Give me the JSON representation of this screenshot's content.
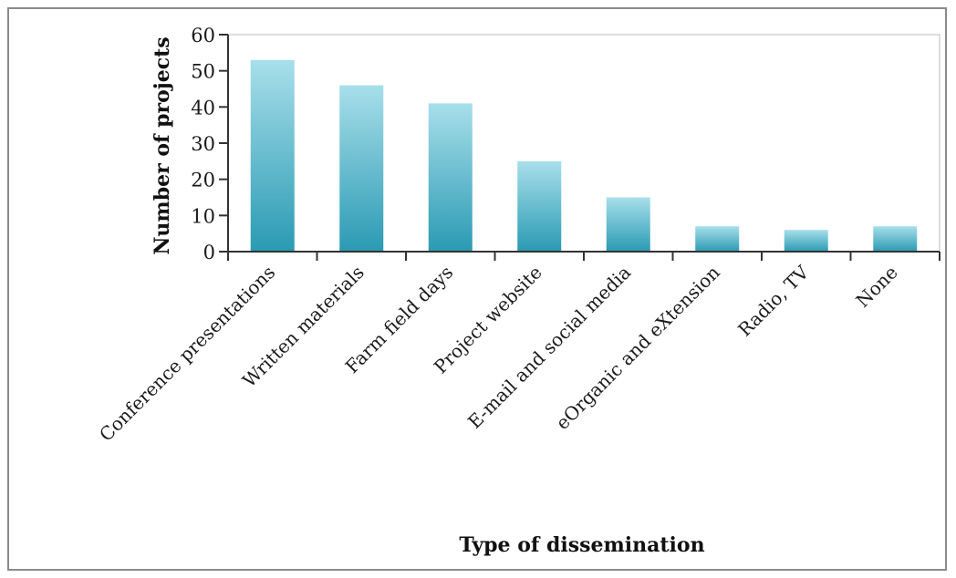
{
  "chart_data": {
    "type": "bar",
    "title": "",
    "xlabel": "Type of dissemination",
    "ylabel": "Number of projects",
    "ylim": [
      0,
      60
    ],
    "yticks": [
      0,
      10,
      20,
      30,
      40,
      50,
      60
    ],
    "grid": false,
    "categories": [
      "Conference presentations",
      "Written materials",
      "Farm field days",
      "Project website",
      "E-mail and social media",
      "eOrganic and eXtension",
      "Radio, TV",
      "None"
    ],
    "values": [
      53,
      46,
      41,
      25,
      15,
      7,
      6,
      7
    ],
    "colors": {
      "bar_top": "#a8dfea",
      "bar_bottom": "#2a9ab3",
      "axis": "#333333",
      "frame": "#8a8a8a"
    }
  }
}
